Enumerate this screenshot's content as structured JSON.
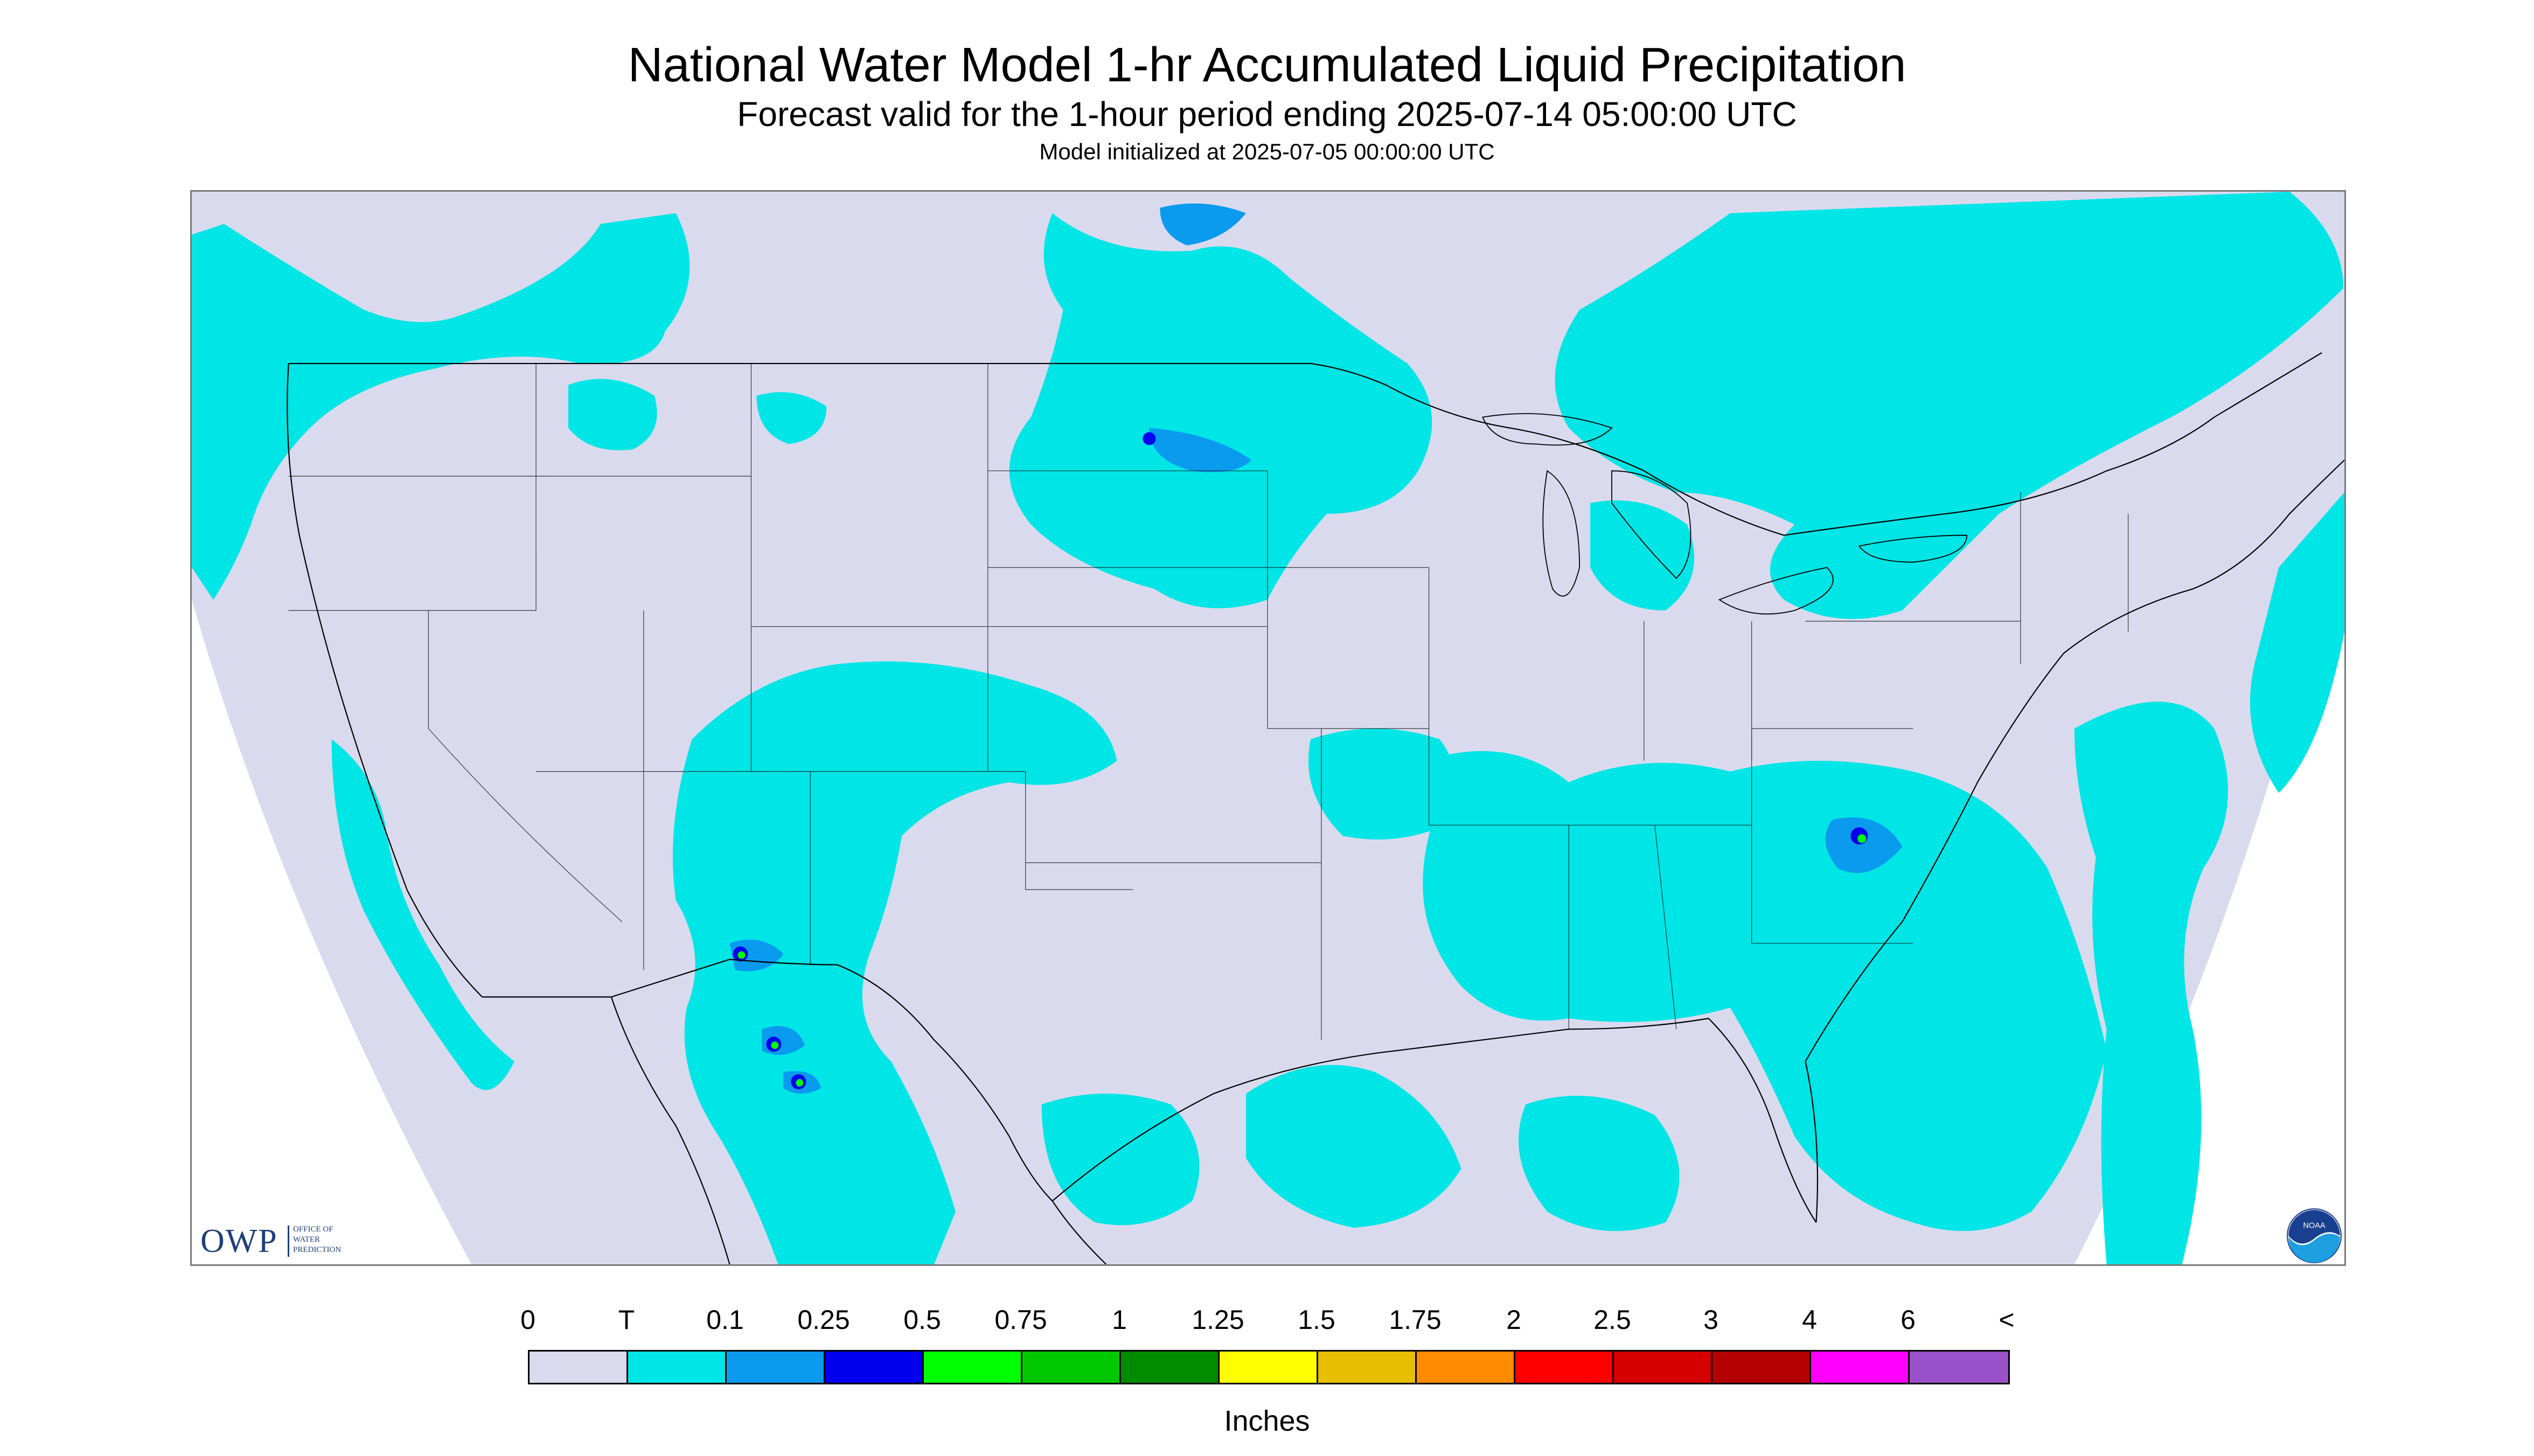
{
  "title": "National Water Model 1-hr Accumulated Liquid Precipitation",
  "subtitle": "Forecast valid for the 1-hour period ending 2025-07-14 05:00:00 UTC",
  "init_line": "Model initialized at 2025-07-05 00:00:00 UTC",
  "logos": {
    "owp_text": "OWP",
    "owp_sub": "OFFICE OF\nWATER\nPREDICTION",
    "noaa_text": "NOAA"
  },
  "legend": {
    "unit": "Inches",
    "labels": [
      "0",
      "T",
      "0.1",
      "0.25",
      "0.5",
      "0.75",
      "1",
      "1.25",
      "1.5",
      "1.75",
      "2",
      "2.5",
      "3",
      "4",
      "6",
      "<"
    ],
    "colors": [
      "#dadaee",
      "#00e5e5",
      "#0a9aee",
      "#0000ee",
      "#00ff00",
      "#00c800",
      "#008c00",
      "#ffff00",
      "#e6bf00",
      "#ff8c00",
      "#ff0000",
      "#d70000",
      "#b40000",
      "#ff00ff",
      "#9a50c8"
    ]
  },
  "colors": {
    "no_data": "#ffffff",
    "zero": "#dadaee",
    "trace": "#00e5e5",
    "light": "#0a9aee",
    "moderate": "#0000ee",
    "heavy": "#00ff00",
    "boundary": "#000000"
  }
}
